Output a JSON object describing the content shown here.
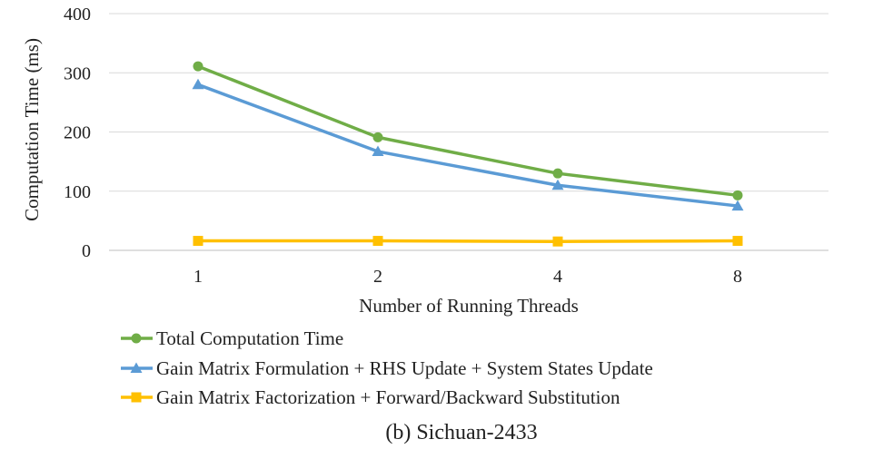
{
  "chart_data": {
    "type": "line",
    "title": "(b) Sichuan-2433",
    "xlabel": "Number of Running Threads",
    "ylabel": "Computation Time (ms)",
    "categories": [
      "1",
      "2",
      "4",
      "8"
    ],
    "ylim": [
      0,
      400
    ],
    "yticks": [
      0,
      100,
      200,
      300,
      400
    ],
    "grid": true,
    "legend_position": "bottom-left",
    "series": [
      {
        "name": "Total Computation Time",
        "values": [
          311,
          191,
          130,
          93
        ],
        "color": "#70ad47",
        "marker": "circle"
      },
      {
        "name": "Gain Matrix Formulation + RHS Update + System States Update",
        "values": [
          280,
          167,
          110,
          75
        ],
        "color": "#5b9bd5",
        "marker": "triangle"
      },
      {
        "name": "Gain Matrix Factorization + Forward/Backward Substitution",
        "values": [
          16,
          16,
          15,
          16
        ],
        "color": "#ffc000",
        "marker": "square"
      }
    ]
  }
}
